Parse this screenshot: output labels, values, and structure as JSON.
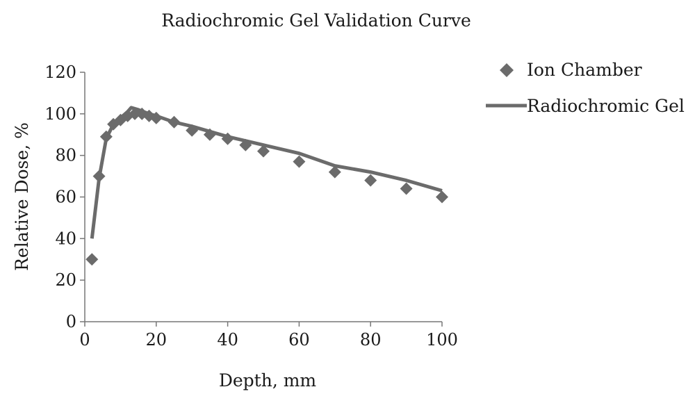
{
  "chart_data": {
    "type": "scatter",
    "title": "Radiochromic Gel Validation Curve",
    "xlabel": "Depth, mm",
    "ylabel": "Relative Dose, %",
    "xlim": [
      0,
      100
    ],
    "ylim": [
      0,
      120
    ],
    "xticks": [
      0,
      20,
      40,
      60,
      80,
      100
    ],
    "yticks": [
      0,
      20,
      40,
      60,
      80,
      100,
      120
    ],
    "grid": false,
    "legend_position": "right",
    "series": [
      {
        "name": "Ion Chamber",
        "type": "scatter",
        "marker": "diamond",
        "color": "#6b6b6b",
        "x": [
          2,
          4,
          6,
          8,
          10,
          12,
          14,
          16,
          18,
          20,
          25,
          30,
          35,
          40,
          45,
          50,
          60,
          70,
          80,
          90,
          100
        ],
        "y": [
          30,
          70,
          89,
          95,
          97,
          99,
          100,
          100,
          99,
          98,
          96,
          92,
          90,
          88,
          85,
          82,
          77,
          72,
          68,
          64,
          60
        ]
      },
      {
        "name": "Radiochromic Gel",
        "type": "line",
        "color": "#6b6b6b",
        "x": [
          2,
          4,
          6,
          8,
          10,
          12,
          13,
          15,
          18,
          20,
          25,
          30,
          40,
          50,
          60,
          70,
          80,
          90,
          100
        ],
        "y": [
          40,
          69,
          88,
          95,
          98,
          101,
          103,
          102,
          100,
          99,
          96,
          94,
          89,
          85,
          81,
          75,
          72,
          68,
          63
        ]
      }
    ]
  }
}
